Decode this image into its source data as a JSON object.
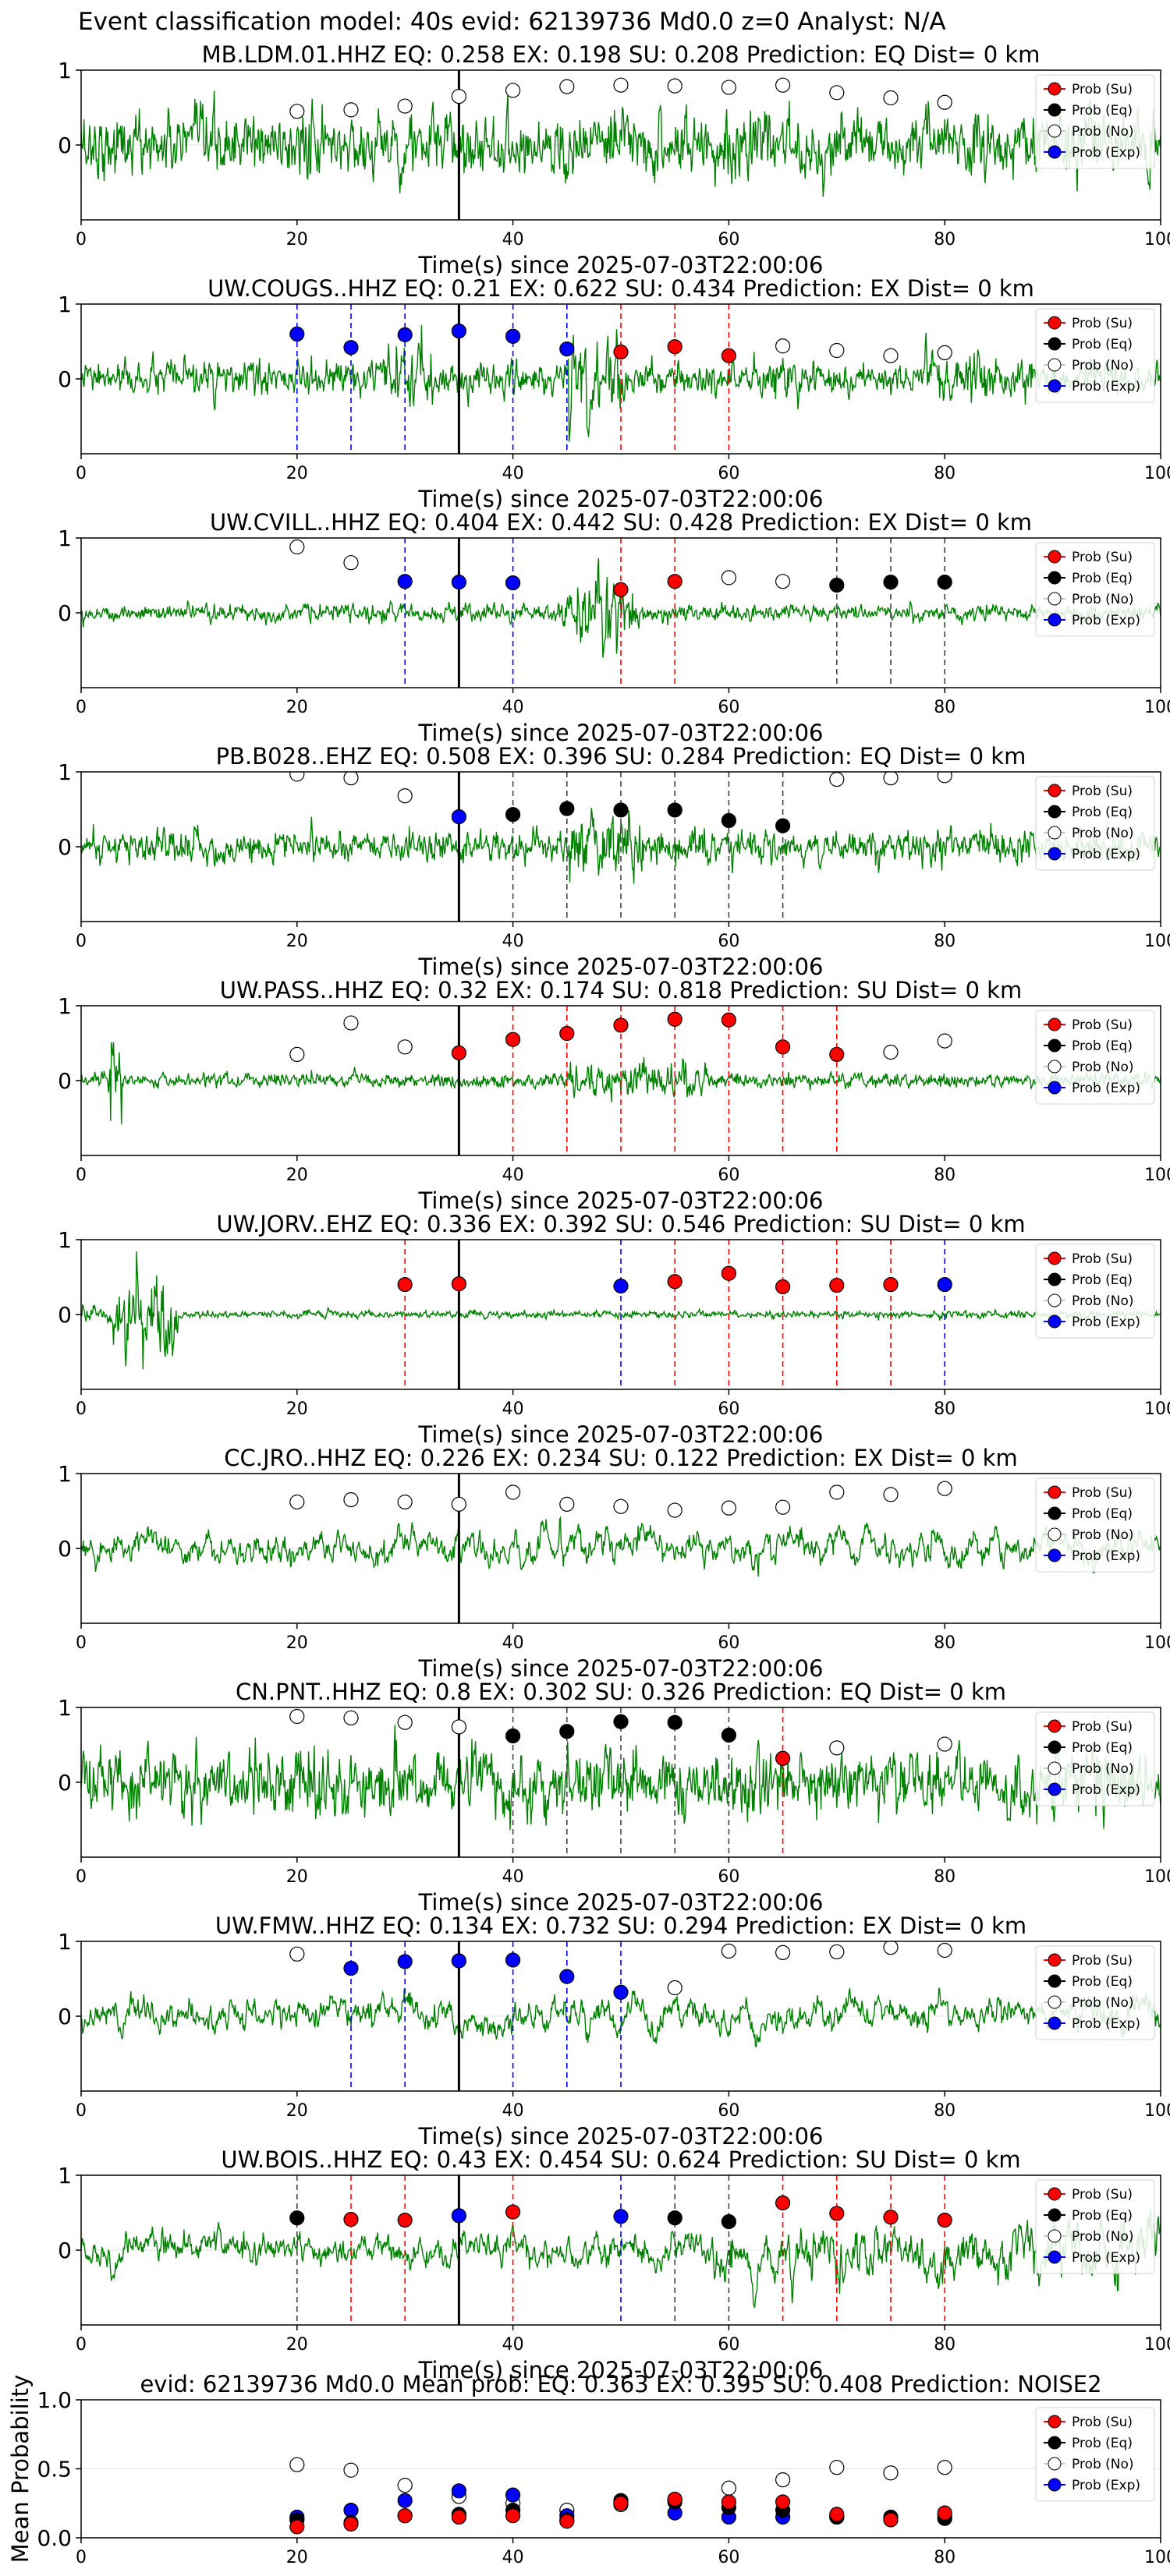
{
  "figure": {
    "suptitle": "Event classification model: 40s evid: 62139736 Md0.0 z=0 Analyst: N/A",
    "x_axis_label": "Time(s) since 2025-07-03T22:00:06",
    "legend": [
      {
        "label": "Prob (Su)",
        "face": "#ff0000"
      },
      {
        "label": "Prob (Eq)",
        "face": "#000000"
      },
      {
        "label": "Prob (No)",
        "face": "#ffffff"
      },
      {
        "label": "Prob (Exp)",
        "face": "#0000ff"
      }
    ],
    "colors": {
      "waveform": "#008000",
      "su": "#ff0000",
      "eq": "#000000",
      "no": "#ffffff",
      "exp": "#0000ff",
      "onset": "#000000"
    }
  },
  "chart_data": [
    {
      "type": "line",
      "station": "MB.LDM.01.HHZ",
      "title": "MB.LDM.01.HHZ   EQ: 0.258  EX: 0.198  SU: 0.208   Prediction: EQ    Dist= 0 km",
      "xlim": [
        0,
        100
      ],
      "ylim": [
        -1,
        1
      ],
      "xticks": [
        0,
        20,
        40,
        60,
        80,
        100
      ],
      "yticks": [
        0,
        1
      ],
      "onset_x": 35,
      "legend_placement": "top-right",
      "waveform_style": "broadband",
      "probabilities": [
        {
          "t": 20,
          "cls": "no",
          "p": 0.45
        },
        {
          "t": 25,
          "cls": "no",
          "p": 0.47
        },
        {
          "t": 30,
          "cls": "no",
          "p": 0.52
        },
        {
          "t": 35,
          "cls": "no",
          "p": 0.65
        },
        {
          "t": 40,
          "cls": "no",
          "p": 0.73
        },
        {
          "t": 45,
          "cls": "no",
          "p": 0.78
        },
        {
          "t": 50,
          "cls": "no",
          "p": 0.8
        },
        {
          "t": 55,
          "cls": "no",
          "p": 0.79
        },
        {
          "t": 60,
          "cls": "no",
          "p": 0.77
        },
        {
          "t": 65,
          "cls": "no",
          "p": 0.8
        },
        {
          "t": 70,
          "cls": "no",
          "p": 0.7
        },
        {
          "t": 75,
          "cls": "no",
          "p": 0.63
        },
        {
          "t": 80,
          "cls": "no",
          "p": 0.57
        }
      ]
    },
    {
      "type": "line",
      "station": "UW.COUGS..HHZ",
      "title": "UW.COUGS..HHZ   EQ: 0.21  EX: 0.622  SU: 0.434   Prediction: EX    Dist= 0 km",
      "xlim": [
        0,
        100
      ],
      "ylim": [
        -1,
        1
      ],
      "xticks": [
        0,
        20,
        40,
        60,
        80,
        100
      ],
      "yticks": [
        0,
        1
      ],
      "onset_x": 35,
      "legend_placement": "top-right",
      "waveform_style": "bursty",
      "probabilities": [
        {
          "t": 20,
          "cls": "exp",
          "p": 0.6
        },
        {
          "t": 25,
          "cls": "exp",
          "p": 0.42
        },
        {
          "t": 30,
          "cls": "exp",
          "p": 0.59
        },
        {
          "t": 35,
          "cls": "exp",
          "p": 0.64
        },
        {
          "t": 40,
          "cls": "exp",
          "p": 0.57
        },
        {
          "t": 45,
          "cls": "exp",
          "p": 0.4
        },
        {
          "t": 50,
          "cls": "su",
          "p": 0.36
        },
        {
          "t": 55,
          "cls": "su",
          "p": 0.43
        },
        {
          "t": 60,
          "cls": "su",
          "p": 0.31
        },
        {
          "t": 65,
          "cls": "no",
          "p": 0.44
        },
        {
          "t": 70,
          "cls": "no",
          "p": 0.38
        },
        {
          "t": 75,
          "cls": "no",
          "p": 0.31
        },
        {
          "t": 80,
          "cls": "no",
          "p": 0.35
        }
      ]
    },
    {
      "type": "line",
      "station": "UW.CVILL..HHZ",
      "title": "UW.CVILL..HHZ   EQ: 0.404  EX: 0.442  SU: 0.428   Prediction: EX    Dist= 0 km",
      "xlim": [
        0,
        100
      ],
      "ylim": [
        -1,
        1
      ],
      "xticks": [
        0,
        20,
        40,
        60,
        80,
        100
      ],
      "yticks": [
        0,
        1
      ],
      "onset_x": 35,
      "legend_placement": "top-right",
      "waveform_style": "spike48",
      "probabilities": [
        {
          "t": 20,
          "cls": "no",
          "p": 0.88
        },
        {
          "t": 25,
          "cls": "no",
          "p": 0.67
        },
        {
          "t": 30,
          "cls": "exp",
          "p": 0.42
        },
        {
          "t": 35,
          "cls": "exp",
          "p": 0.41
        },
        {
          "t": 40,
          "cls": "exp",
          "p": 0.4
        },
        {
          "t": 50,
          "cls": "su",
          "p": 0.31
        },
        {
          "t": 55,
          "cls": "su",
          "p": 0.42
        },
        {
          "t": 60,
          "cls": "no",
          "p": 0.47
        },
        {
          "t": 65,
          "cls": "no",
          "p": 0.42
        },
        {
          "t": 70,
          "cls": "eq",
          "p": 0.37
        },
        {
          "t": 75,
          "cls": "eq",
          "p": 0.41
        },
        {
          "t": 80,
          "cls": "eq",
          "p": 0.41
        }
      ]
    },
    {
      "type": "line",
      "station": "PB.B028..EHZ",
      "title": "PB.B028..EHZ   EQ: 0.508  EX: 0.396  SU: 0.284   Prediction: EQ    Dist= 0 km",
      "xlim": [
        0,
        100
      ],
      "ylim": [
        -1,
        1
      ],
      "xticks": [
        0,
        20,
        40,
        60,
        80,
        100
      ],
      "yticks": [
        0,
        1
      ],
      "onset_x": 35,
      "legend_placement": "top-right",
      "waveform_style": "moderate",
      "probabilities": [
        {
          "t": 20,
          "cls": "no",
          "p": 0.97
        },
        {
          "t": 25,
          "cls": "no",
          "p": 0.92
        },
        {
          "t": 30,
          "cls": "no",
          "p": 0.68
        },
        {
          "t": 35,
          "cls": "exp",
          "p": 0.4
        },
        {
          "t": 40,
          "cls": "eq",
          "p": 0.43
        },
        {
          "t": 45,
          "cls": "eq",
          "p": 0.51
        },
        {
          "t": 50,
          "cls": "eq",
          "p": 0.49
        },
        {
          "t": 55,
          "cls": "eq",
          "p": 0.49
        },
        {
          "t": 60,
          "cls": "eq",
          "p": 0.35
        },
        {
          "t": 65,
          "cls": "eq",
          "p": 0.28
        },
        {
          "t": 70,
          "cls": "no",
          "p": 0.9
        },
        {
          "t": 75,
          "cls": "no",
          "p": 0.92
        },
        {
          "t": 80,
          "cls": "no",
          "p": 0.95
        }
      ]
    },
    {
      "type": "line",
      "station": "UW.PASS..HHZ",
      "title": "UW.PASS..HHZ   EQ: 0.32  EX: 0.174  SU: 0.818   Prediction: SU    Dist= 0 km",
      "xlim": [
        0,
        100
      ],
      "ylim": [
        -1,
        1
      ],
      "xticks": [
        0,
        20,
        40,
        60,
        80,
        100
      ],
      "yticks": [
        0,
        1
      ],
      "onset_x": 35,
      "legend_placement": "top-right",
      "waveform_style": "quiet_spike",
      "probabilities": [
        {
          "t": 20,
          "cls": "no",
          "p": 0.35
        },
        {
          "t": 25,
          "cls": "no",
          "p": 0.77
        },
        {
          "t": 30,
          "cls": "no",
          "p": 0.45
        },
        {
          "t": 35,
          "cls": "su",
          "p": 0.37
        },
        {
          "t": 40,
          "cls": "su",
          "p": 0.55
        },
        {
          "t": 45,
          "cls": "su",
          "p": 0.63
        },
        {
          "t": 50,
          "cls": "su",
          "p": 0.74
        },
        {
          "t": 55,
          "cls": "su",
          "p": 0.82
        },
        {
          "t": 60,
          "cls": "su",
          "p": 0.81
        },
        {
          "t": 65,
          "cls": "su",
          "p": 0.45
        },
        {
          "t": 70,
          "cls": "su",
          "p": 0.35
        },
        {
          "t": 75,
          "cls": "no",
          "p": 0.38
        },
        {
          "t": 80,
          "cls": "no",
          "p": 0.53
        }
      ]
    },
    {
      "type": "line",
      "station": "UW.JORV..EHZ",
      "title": "UW.JORV..EHZ   EQ: 0.336  EX: 0.392  SU: 0.546   Prediction: SU    Dist= 0 km",
      "xlim": [
        0,
        100
      ],
      "ylim": [
        -1,
        1
      ],
      "xticks": [
        0,
        20,
        40,
        60,
        80,
        100
      ],
      "yticks": [
        0,
        1
      ],
      "onset_x": 35,
      "legend_placement": "top-right",
      "waveform_style": "early_burst",
      "probabilities": [
        {
          "t": 30,
          "cls": "su",
          "p": 0.4
        },
        {
          "t": 35,
          "cls": "su",
          "p": 0.41
        },
        {
          "t": 50,
          "cls": "exp",
          "p": 0.38
        },
        {
          "t": 55,
          "cls": "su",
          "p": 0.44
        },
        {
          "t": 60,
          "cls": "su",
          "p": 0.55
        },
        {
          "t": 65,
          "cls": "su",
          "p": 0.37
        },
        {
          "t": 70,
          "cls": "su",
          "p": 0.39
        },
        {
          "t": 75,
          "cls": "su",
          "p": 0.4
        },
        {
          "t": 80,
          "cls": "exp",
          "p": 0.4
        }
      ]
    },
    {
      "type": "line",
      "station": "CC.JRO..HHZ",
      "title": "CC.JRO..HHZ   EQ: 0.226  EX: 0.234  SU: 0.122   Prediction: EX    Dist= 0 km",
      "xlim": [
        0,
        100
      ],
      "ylim": [
        -1,
        1
      ],
      "xticks": [
        0,
        20,
        40,
        60,
        80,
        100
      ],
      "yticks": [
        0,
        1
      ],
      "onset_x": 35,
      "legend_placement": "top-right",
      "waveform_style": "longperiod",
      "probabilities": [
        {
          "t": 20,
          "cls": "no",
          "p": 0.62
        },
        {
          "t": 25,
          "cls": "no",
          "p": 0.65
        },
        {
          "t": 30,
          "cls": "no",
          "p": 0.62
        },
        {
          "t": 35,
          "cls": "no",
          "p": 0.59
        },
        {
          "t": 40,
          "cls": "no",
          "p": 0.75
        },
        {
          "t": 45,
          "cls": "no",
          "p": 0.59
        },
        {
          "t": 50,
          "cls": "no",
          "p": 0.56
        },
        {
          "t": 55,
          "cls": "no",
          "p": 0.51
        },
        {
          "t": 60,
          "cls": "no",
          "p": 0.54
        },
        {
          "t": 65,
          "cls": "no",
          "p": 0.55
        },
        {
          "t": 70,
          "cls": "no",
          "p": 0.75
        },
        {
          "t": 75,
          "cls": "no",
          "p": 0.72
        },
        {
          "t": 80,
          "cls": "no",
          "p": 0.8
        }
      ]
    },
    {
      "type": "line",
      "station": "CN.PNT..HHZ",
      "title": "CN.PNT..HHZ   EQ: 0.8  EX: 0.302  SU: 0.326   Prediction: EQ    Dist= 0 km",
      "xlim": [
        0,
        100
      ],
      "ylim": [
        -1,
        1
      ],
      "xticks": [
        0,
        20,
        40,
        60,
        80,
        100
      ],
      "yticks": [
        0,
        1
      ],
      "onset_x": 35,
      "legend_placement": "top-right",
      "waveform_style": "broadband",
      "probabilities": [
        {
          "t": 20,
          "cls": "no",
          "p": 0.88
        },
        {
          "t": 25,
          "cls": "no",
          "p": 0.86
        },
        {
          "t": 30,
          "cls": "no",
          "p": 0.8
        },
        {
          "t": 35,
          "cls": "no",
          "p": 0.74
        },
        {
          "t": 40,
          "cls": "eq",
          "p": 0.62
        },
        {
          "t": 45,
          "cls": "eq",
          "p": 0.68
        },
        {
          "t": 50,
          "cls": "eq",
          "p": 0.81
        },
        {
          "t": 55,
          "cls": "eq",
          "p": 0.8
        },
        {
          "t": 60,
          "cls": "eq",
          "p": 0.63
        },
        {
          "t": 65,
          "cls": "su",
          "p": 0.32
        },
        {
          "t": 70,
          "cls": "no",
          "p": 0.46
        },
        {
          "t": 80,
          "cls": "no",
          "p": 0.51
        }
      ]
    },
    {
      "type": "line",
      "station": "UW.FMW..HHZ",
      "title": "UW.FMW..HHZ   EQ: 0.134  EX: 0.732  SU: 0.294   Prediction: EX    Dist= 0 km",
      "xlim": [
        0,
        100
      ],
      "ylim": [
        -1,
        1
      ],
      "xticks": [
        0,
        20,
        40,
        60,
        80,
        100
      ],
      "yticks": [
        0,
        1
      ],
      "onset_x": 35,
      "legend_placement": "top-right",
      "waveform_style": "longperiod",
      "probabilities": [
        {
          "t": 20,
          "cls": "no",
          "p": 0.83
        },
        {
          "t": 25,
          "cls": "exp",
          "p": 0.64
        },
        {
          "t": 30,
          "cls": "exp",
          "p": 0.73
        },
        {
          "t": 35,
          "cls": "exp",
          "p": 0.74
        },
        {
          "t": 40,
          "cls": "exp",
          "p": 0.75
        },
        {
          "t": 45,
          "cls": "exp",
          "p": 0.53
        },
        {
          "t": 50,
          "cls": "exp",
          "p": 0.32
        },
        {
          "t": 55,
          "cls": "no",
          "p": 0.38
        },
        {
          "t": 60,
          "cls": "no",
          "p": 0.87
        },
        {
          "t": 65,
          "cls": "no",
          "p": 0.85
        },
        {
          "t": 70,
          "cls": "no",
          "p": 0.86
        },
        {
          "t": 75,
          "cls": "no",
          "p": 0.92
        },
        {
          "t": 80,
          "cls": "no",
          "p": 0.88
        }
      ]
    },
    {
      "type": "line",
      "station": "UW.BOIS..HHZ",
      "title": "UW.BOIS..HHZ   EQ: 0.43  EX: 0.454  SU: 0.624   Prediction: SU    Dist= 0 km",
      "xlim": [
        0,
        100
      ],
      "ylim": [
        -1,
        1
      ],
      "xticks": [
        0,
        20,
        40,
        60,
        80,
        100
      ],
      "yticks": [
        0,
        1
      ],
      "onset_x": 35,
      "legend_placement": "top-right",
      "waveform_style": "late_burst",
      "probabilities": [
        {
          "t": 20,
          "cls": "eq",
          "p": 0.43
        },
        {
          "t": 25,
          "cls": "su",
          "p": 0.41
        },
        {
          "t": 30,
          "cls": "su",
          "p": 0.4
        },
        {
          "t": 35,
          "cls": "exp",
          "p": 0.46
        },
        {
          "t": 40,
          "cls": "su",
          "p": 0.51
        },
        {
          "t": 50,
          "cls": "exp",
          "p": 0.45
        },
        {
          "t": 55,
          "cls": "eq",
          "p": 0.43
        },
        {
          "t": 60,
          "cls": "eq",
          "p": 0.38
        },
        {
          "t": 65,
          "cls": "su",
          "p": 0.63
        },
        {
          "t": 70,
          "cls": "su",
          "p": 0.49
        },
        {
          "t": 75,
          "cls": "su",
          "p": 0.44
        },
        {
          "t": 80,
          "cls": "su",
          "p": 0.4
        }
      ]
    },
    {
      "type": "scatter",
      "title": "evid: 62139736  Md0.0   Mean prob:   EQ: 0.363  EX: 0.395  SU: 0.408   Prediction: NOISE2",
      "ylabel": "Mean Probability",
      "xlim": [
        0,
        100
      ],
      "ylim": [
        0,
        1
      ],
      "xticks": [
        0,
        20,
        40,
        60,
        80,
        100
      ],
      "yticks": [
        0.0,
        0.5,
        1.0
      ],
      "ytick_labels": [
        "0.0",
        "0.5",
        "1.0"
      ],
      "legend_placement": "top-right",
      "x": [
        20,
        25,
        30,
        35,
        40,
        45,
        50,
        55,
        60,
        65,
        70,
        75,
        80
      ],
      "series": [
        {
          "cls": "no",
          "values": [
            0.53,
            0.49,
            0.38,
            0.3,
            0.25,
            0.2,
            0.24,
            0.27,
            0.36,
            0.42,
            0.51,
            0.47,
            0.51
          ]
        },
        {
          "cls": "exp",
          "values": [
            0.15,
            0.2,
            0.27,
            0.34,
            0.31,
            0.16,
            0.25,
            0.18,
            0.15,
            0.15,
            0.15,
            0.14,
            0.16
          ]
        },
        {
          "cls": "eq",
          "values": [
            0.13,
            0.11,
            0.16,
            0.17,
            0.2,
            0.13,
            0.27,
            0.26,
            0.22,
            0.2,
            0.15,
            0.15,
            0.14
          ]
        },
        {
          "cls": "su",
          "values": [
            0.08,
            0.1,
            0.16,
            0.15,
            0.16,
            0.12,
            0.25,
            0.28,
            0.26,
            0.26,
            0.17,
            0.13,
            0.18
          ]
        }
      ]
    }
  ]
}
